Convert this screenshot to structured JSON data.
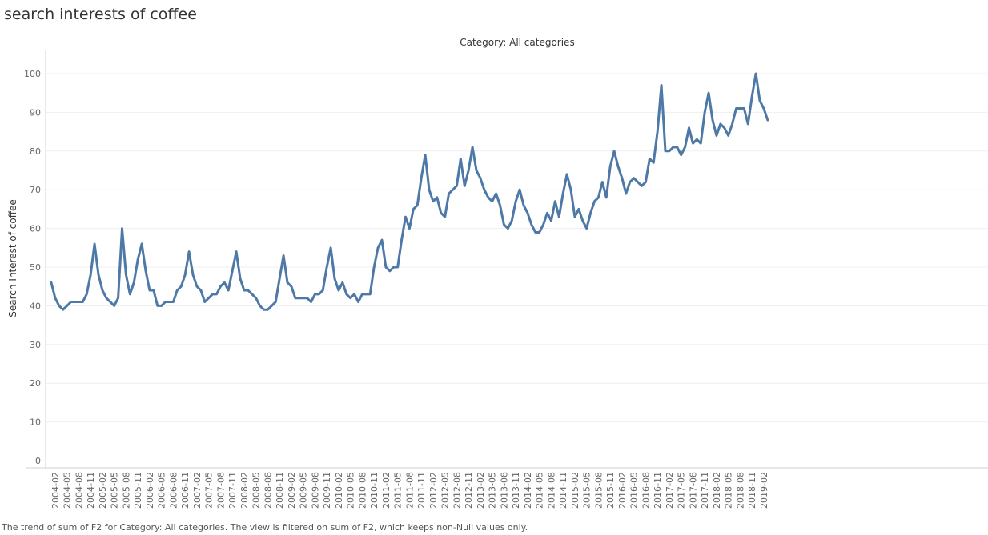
{
  "sheet": {
    "title": "search interests of coffee",
    "header": "Category: All categories",
    "footer": "The trend of sum of F2 for Category: All categories. The view is filtered on sum of F2, which keeps non-Null values only."
  },
  "colors": {
    "line": "#4e79a7",
    "grid": "#efefef",
    "axis": "#d0d0d0"
  },
  "chart_data": {
    "type": "line",
    "title": "search interests of coffee",
    "subtitle": "Category: All categories",
    "xlabel": "",
    "ylabel": "Search Interest of coffee",
    "ylim": [
      0,
      105
    ],
    "yticks": [
      0,
      10,
      20,
      30,
      40,
      50,
      60,
      70,
      80,
      90,
      100
    ],
    "grid": true,
    "legend": "none",
    "x_start": "2004-01",
    "x_end": "2019-04",
    "x_tick_labels": [
      "2004-02",
      "2004-05",
      "2004-08",
      "2004-11",
      "2005-02",
      "2005-05",
      "2005-08",
      "2005-11",
      "2006-02",
      "2006-05",
      "2006-08",
      "2006-11",
      "2007-02",
      "2007-05",
      "2007-08",
      "2007-11",
      "2008-02",
      "2008-05",
      "2008-08",
      "2008-11",
      "2009-02",
      "2009-05",
      "2009-08",
      "2009-11",
      "2010-02",
      "2010-05",
      "2010-08",
      "2010-11",
      "2011-02",
      "2011-05",
      "2011-08",
      "2011-11",
      "2012-02",
      "2012-05",
      "2012-08",
      "2012-11",
      "2013-02",
      "2013-05",
      "2013-08",
      "2013-11",
      "2014-02",
      "2014-05",
      "2014-08",
      "2014-11",
      "2015-02",
      "2015-05",
      "2015-08",
      "2015-11",
      "2016-02",
      "2016-05",
      "2016-08",
      "2016-11",
      "2017-02",
      "2017-05",
      "2017-08",
      "2017-11",
      "2018-02",
      "2018-05",
      "2018-08",
      "2018-11",
      "2019-02"
    ],
    "series": [
      {
        "values": [
          46,
          42,
          40,
          39,
          40,
          41,
          41,
          41,
          41,
          43,
          48,
          56,
          48,
          44,
          42,
          41,
          40,
          42,
          60,
          48,
          43,
          46,
          52,
          56,
          49,
          44,
          44,
          40,
          40,
          41,
          41,
          41,
          44,
          45,
          48,
          54,
          48,
          45,
          44,
          41,
          42,
          43,
          43,
          45,
          46,
          44,
          49,
          54,
          47,
          44,
          44,
          43,
          42,
          40,
          39,
          39,
          40,
          41,
          47,
          53,
          46,
          45,
          42,
          42,
          42,
          42,
          41,
          43,
          43,
          44,
          50,
          55,
          47,
          44,
          46,
          43,
          42,
          43,
          41,
          43,
          43,
          43,
          50,
          55,
          57,
          50,
          49,
          50,
          50,
          57,
          63,
          60,
          65,
          66,
          73,
          79,
          70,
          67,
          68,
          64,
          63,
          69,
          70,
          71,
          78,
          71,
          75,
          81,
          75,
          73,
          70,
          68,
          67,
          69,
          66,
          61,
          60,
          62,
          67,
          70,
          66,
          64,
          61,
          59,
          59,
          61,
          64,
          62,
          67,
          63,
          69,
          74,
          70,
          63,
          65,
          62,
          60,
          64,
          67,
          68,
          72,
          68,
          76,
          80,
          76,
          73,
          69,
          72,
          73,
          72,
          71,
          72,
          78,
          77,
          85,
          97,
          80,
          80,
          81,
          81,
          79,
          81,
          86,
          82,
          83,
          82,
          90,
          95,
          88,
          84,
          87,
          86,
          84,
          87,
          91,
          91,
          91,
          87,
          94,
          100,
          93,
          91,
          88
        ]
      }
    ]
  }
}
